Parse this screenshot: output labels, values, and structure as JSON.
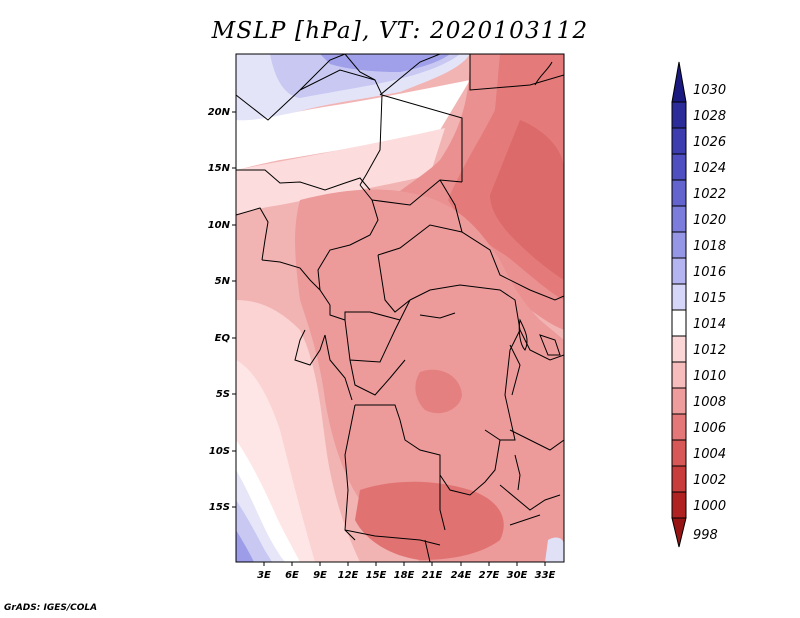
{
  "title": "MSLP [hPa], VT: 2020103112",
  "credit": "GrADS: IGES/COLA",
  "map": {
    "lat_labels": [
      "20N",
      "15N",
      "10N",
      "5N",
      "EQ",
      "5S",
      "10S",
      "15S"
    ],
    "lon_labels": [
      "3E",
      "6E",
      "9E",
      "12E",
      "15E",
      "18E",
      "21E",
      "24E",
      "27E",
      "30E",
      "33E"
    ]
  },
  "colorbar": {
    "labels": [
      "1030",
      "1028",
      "1026",
      "1024",
      "1022",
      "1020",
      "1018",
      "1016",
      "1015",
      "1014",
      "1012",
      "1010",
      "1008",
      "1006",
      "1004",
      "1002",
      "1000",
      "998"
    ],
    "colors": [
      "#1a1a80",
      "#2b2b99",
      "#3d3db0",
      "#4f4fc2",
      "#6464cf",
      "#7c7cdc",
      "#9696e6",
      "#b4b4f0",
      "#d6d6f8",
      "#ffffff",
      "#fbd6d6",
      "#f7bcbc",
      "#ee9c9c",
      "#e47878",
      "#d85858",
      "#c83c3c",
      "#b02222",
      "#961414"
    ]
  }
}
